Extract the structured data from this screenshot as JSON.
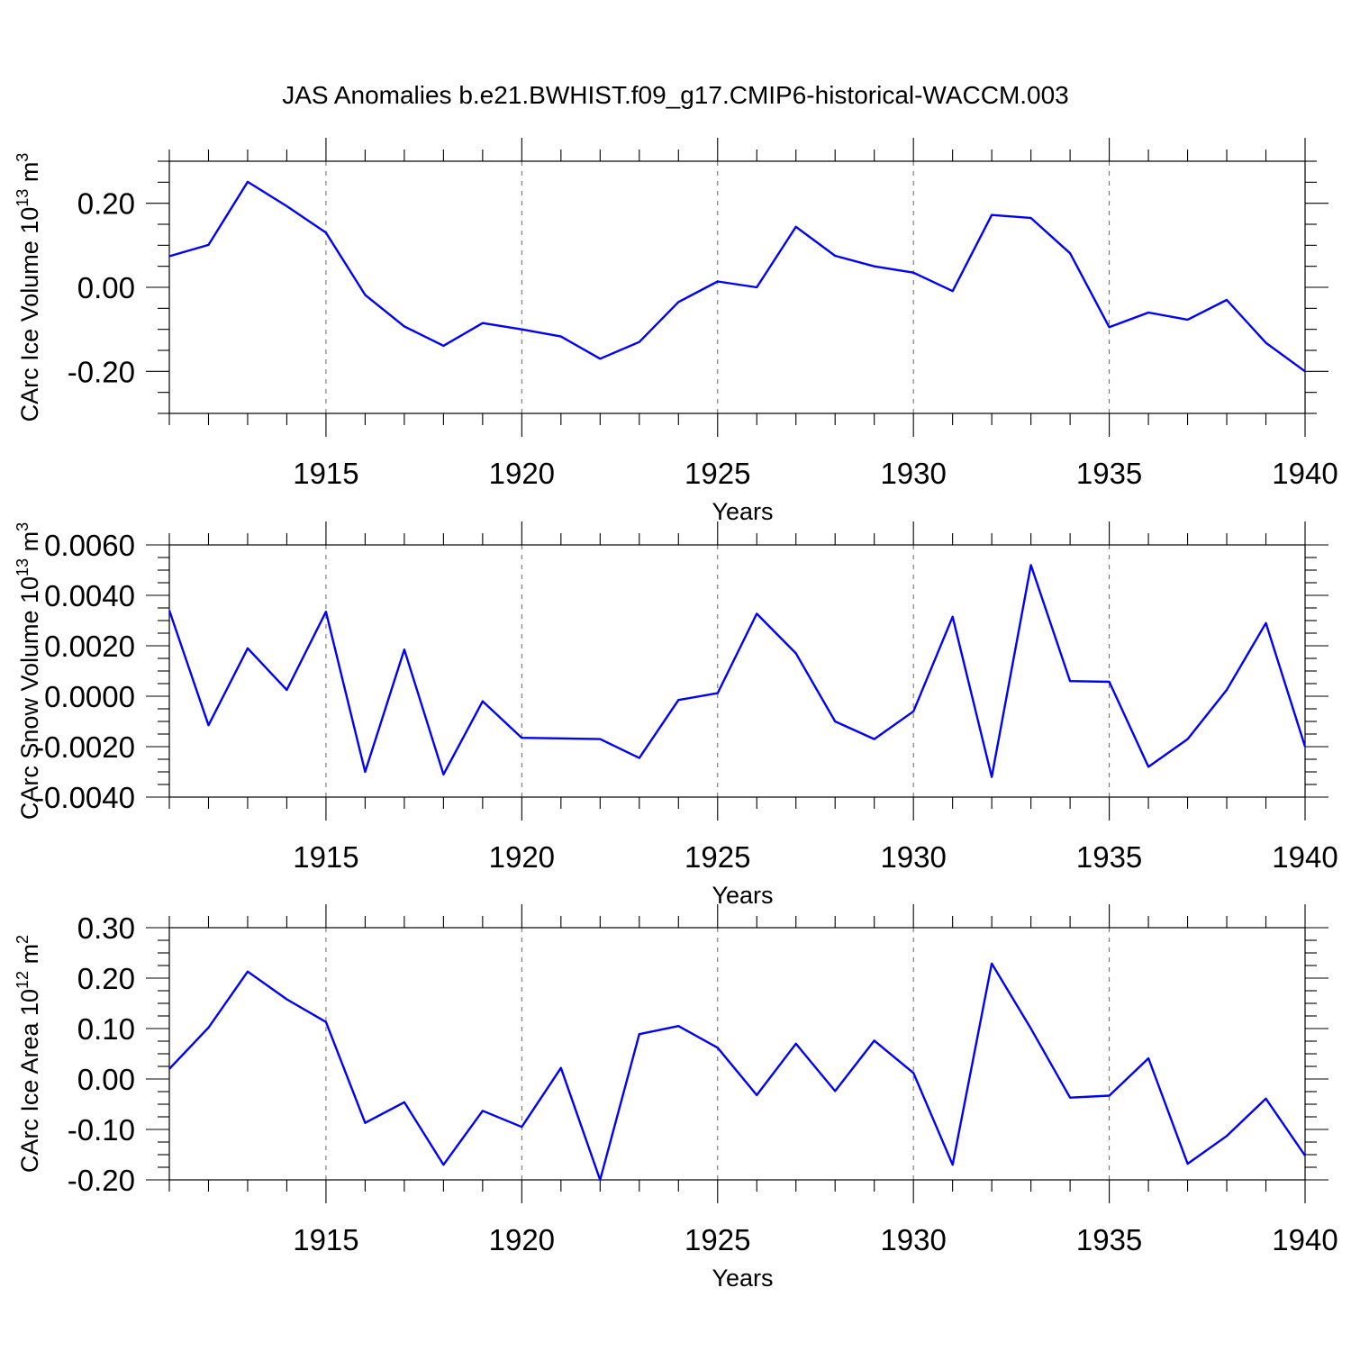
{
  "title": "JAS Anomalies b.e21.BWHIST.f09_g17.CMIP6-historical-WACCM.003",
  "colors": {
    "line": "#0000ff",
    "grid": "#666666",
    "axis": "#000000"
  },
  "chart_data": [
    {
      "type": "line",
      "ylabel": "CArc Ice Volume 10",
      "ylabel_exp": "13",
      "ylabel_unit": " m",
      "ylabel_unit_exp": "3",
      "xlabel": "Years",
      "xlim": [
        1911,
        1940
      ],
      "ylim": [
        -0.3,
        0.3
      ],
      "x_ticks": [
        1915,
        1920,
        1925,
        1930,
        1935,
        1940
      ],
      "x_tick_labels": [
        "1915",
        "1920",
        "1925",
        "1930",
        "1935",
        "1940"
      ],
      "y_ticks": [
        -0.2,
        0.0,
        0.2
      ],
      "y_tick_labels": [
        "-0.20",
        "0.00",
        "0.20"
      ],
      "y_minor_step": 0.05,
      "x": [
        1911,
        1912,
        1913,
        1914,
        1915,
        1916,
        1917,
        1918,
        1919,
        1920,
        1921,
        1922,
        1923,
        1924,
        1925,
        1926,
        1927,
        1928,
        1929,
        1930,
        1931,
        1932,
        1933,
        1934,
        1935,
        1936,
        1937,
        1938,
        1939,
        1940
      ],
      "values": [
        0.074,
        0.101,
        0.251,
        0.193,
        0.13,
        -0.018,
        -0.093,
        -0.139,
        -0.085,
        -0.1,
        -0.117,
        -0.17,
        -0.13,
        -0.035,
        0.014,
        0.0,
        0.144,
        0.075,
        0.05,
        0.035,
        -0.009,
        0.172,
        0.165,
        0.081,
        -0.095,
        -0.06,
        -0.077,
        -0.03,
        -0.132,
        -0.2
      ]
    },
    {
      "type": "line",
      "ylabel": "CArc Snow Volume 10",
      "ylabel_exp": "13",
      "ylabel_unit": " m",
      "ylabel_unit_exp": "3",
      "xlabel": "Years",
      "xlim": [
        1911,
        1940
      ],
      "ylim": [
        -0.004,
        0.006
      ],
      "x_ticks": [
        1915,
        1920,
        1925,
        1930,
        1935,
        1940
      ],
      "x_tick_labels": [
        "1915",
        "1920",
        "1925",
        "1930",
        "1935",
        "1940"
      ],
      "y_ticks": [
        -0.004,
        -0.002,
        0.0,
        0.002,
        0.004,
        0.006
      ],
      "y_tick_labels": [
        "-0.0040",
        "-0.0020",
        "0.0000",
        "0.0020",
        "0.0040",
        "0.0060"
      ],
      "y_minor_step": 0.0005,
      "x": [
        1911,
        1912,
        1913,
        1914,
        1915,
        1916,
        1917,
        1918,
        1919,
        1920,
        1921,
        1922,
        1923,
        1924,
        1925,
        1926,
        1927,
        1928,
        1929,
        1930,
        1931,
        1932,
        1933,
        1934,
        1935,
        1936,
        1937,
        1938,
        1939,
        1940
      ],
      "values": [
        0.0034,
        -0.00115,
        0.0019,
        0.00025,
        0.00335,
        -0.003,
        0.00185,
        -0.0031,
        -0.0002,
        -0.00165,
        -0.00167,
        -0.0017,
        -0.00245,
        -0.00015,
        0.00012,
        0.00327,
        0.0017,
        -0.001,
        -0.0017,
        -0.0006,
        0.00315,
        -0.0032,
        0.0052,
        0.0006,
        0.00057,
        -0.0028,
        -0.0017,
        0.00025,
        0.0029,
        -0.002
      ]
    },
    {
      "type": "line",
      "ylabel": "CArc Ice Area 10",
      "ylabel_exp": "12",
      "ylabel_unit": " m",
      "ylabel_unit_exp": "2",
      "xlabel": "Years",
      "xlim": [
        1911,
        1940
      ],
      "ylim": [
        -0.2,
        0.3
      ],
      "x_ticks": [
        1915,
        1920,
        1925,
        1930,
        1935,
        1940
      ],
      "x_tick_labels": [
        "1915",
        "1920",
        "1925",
        "1930",
        "1935",
        "1940"
      ],
      "y_ticks": [
        -0.2,
        -0.1,
        0.0,
        0.1,
        0.2,
        0.3
      ],
      "y_tick_labels": [
        "-0.20",
        "-0.10",
        "0.00",
        "0.10",
        "0.20",
        "0.30"
      ],
      "y_minor_step": 0.025,
      "x": [
        1911,
        1912,
        1913,
        1914,
        1915,
        1916,
        1917,
        1918,
        1919,
        1920,
        1921,
        1922,
        1923,
        1924,
        1925,
        1926,
        1927,
        1928,
        1929,
        1930,
        1931,
        1932,
        1933,
        1934,
        1935,
        1936,
        1937,
        1938,
        1939,
        1940
      ],
      "values": [
        0.02,
        0.102,
        0.213,
        0.158,
        0.113,
        -0.087,
        -0.046,
        -0.17,
        -0.063,
        -0.095,
        0.022,
        -0.2,
        0.089,
        0.105,
        0.062,
        -0.032,
        0.07,
        -0.024,
        0.076,
        0.012,
        -0.17,
        0.229,
        0.1,
        -0.037,
        -0.033,
        0.041,
        -0.168,
        -0.113,
        -0.039,
        -0.152
      ]
    }
  ]
}
